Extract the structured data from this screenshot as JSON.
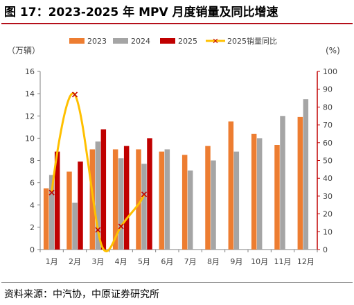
{
  "title": "图 17：2023-2025 年 MPV 月度销量及同比增速",
  "source": "资料来源：中汽协，中原证券研究所",
  "chart_data": {
    "type": "bar",
    "left_unit": "（万辆）",
    "right_unit": "(%)",
    "categories": [
      "1月",
      "2月",
      "3月",
      "4月",
      "5月",
      "6月",
      "7月",
      "8月",
      "9月",
      "10月",
      "11月",
      "12月"
    ],
    "ylim_left": [
      0,
      16
    ],
    "yticks_left": [
      "0",
      "2",
      "4",
      "6",
      "8",
      "10",
      "12",
      "14",
      "16"
    ],
    "ylim_right": [
      0,
      100
    ],
    "yticks_right": [
      "0",
      "10",
      "20",
      "30",
      "40",
      "50",
      "60",
      "70",
      "80",
      "90",
      "100"
    ],
    "series": [
      {
        "name": "2023",
        "color": "#ed7d31",
        "values": [
          5.5,
          7.0,
          9.0,
          9.0,
          9.0,
          8.8,
          8.5,
          9.3,
          11.5,
          10.4,
          9.4,
          11.9
        ]
      },
      {
        "name": "2024",
        "color": "#a5a5a5",
        "values": [
          6.7,
          4.2,
          9.7,
          8.2,
          7.7,
          9.0,
          7.1,
          8.0,
          8.8,
          10.0,
          12.0,
          13.5
        ]
      },
      {
        "name": "2025",
        "color": "#c00000",
        "values": [
          8.8,
          7.9,
          10.8,
          9.3,
          10.0,
          null,
          null,
          null,
          null,
          null,
          null,
          null
        ]
      }
    ],
    "line_series": {
      "name": "2025销量同比",
      "color": "#ffc000",
      "marker_color": "#c00000",
      "axis": "right",
      "values": [
        32,
        87,
        11,
        13,
        31,
        null,
        null,
        null,
        null,
        null,
        null,
        null
      ]
    },
    "legend_position": "top",
    "grid": false
  }
}
